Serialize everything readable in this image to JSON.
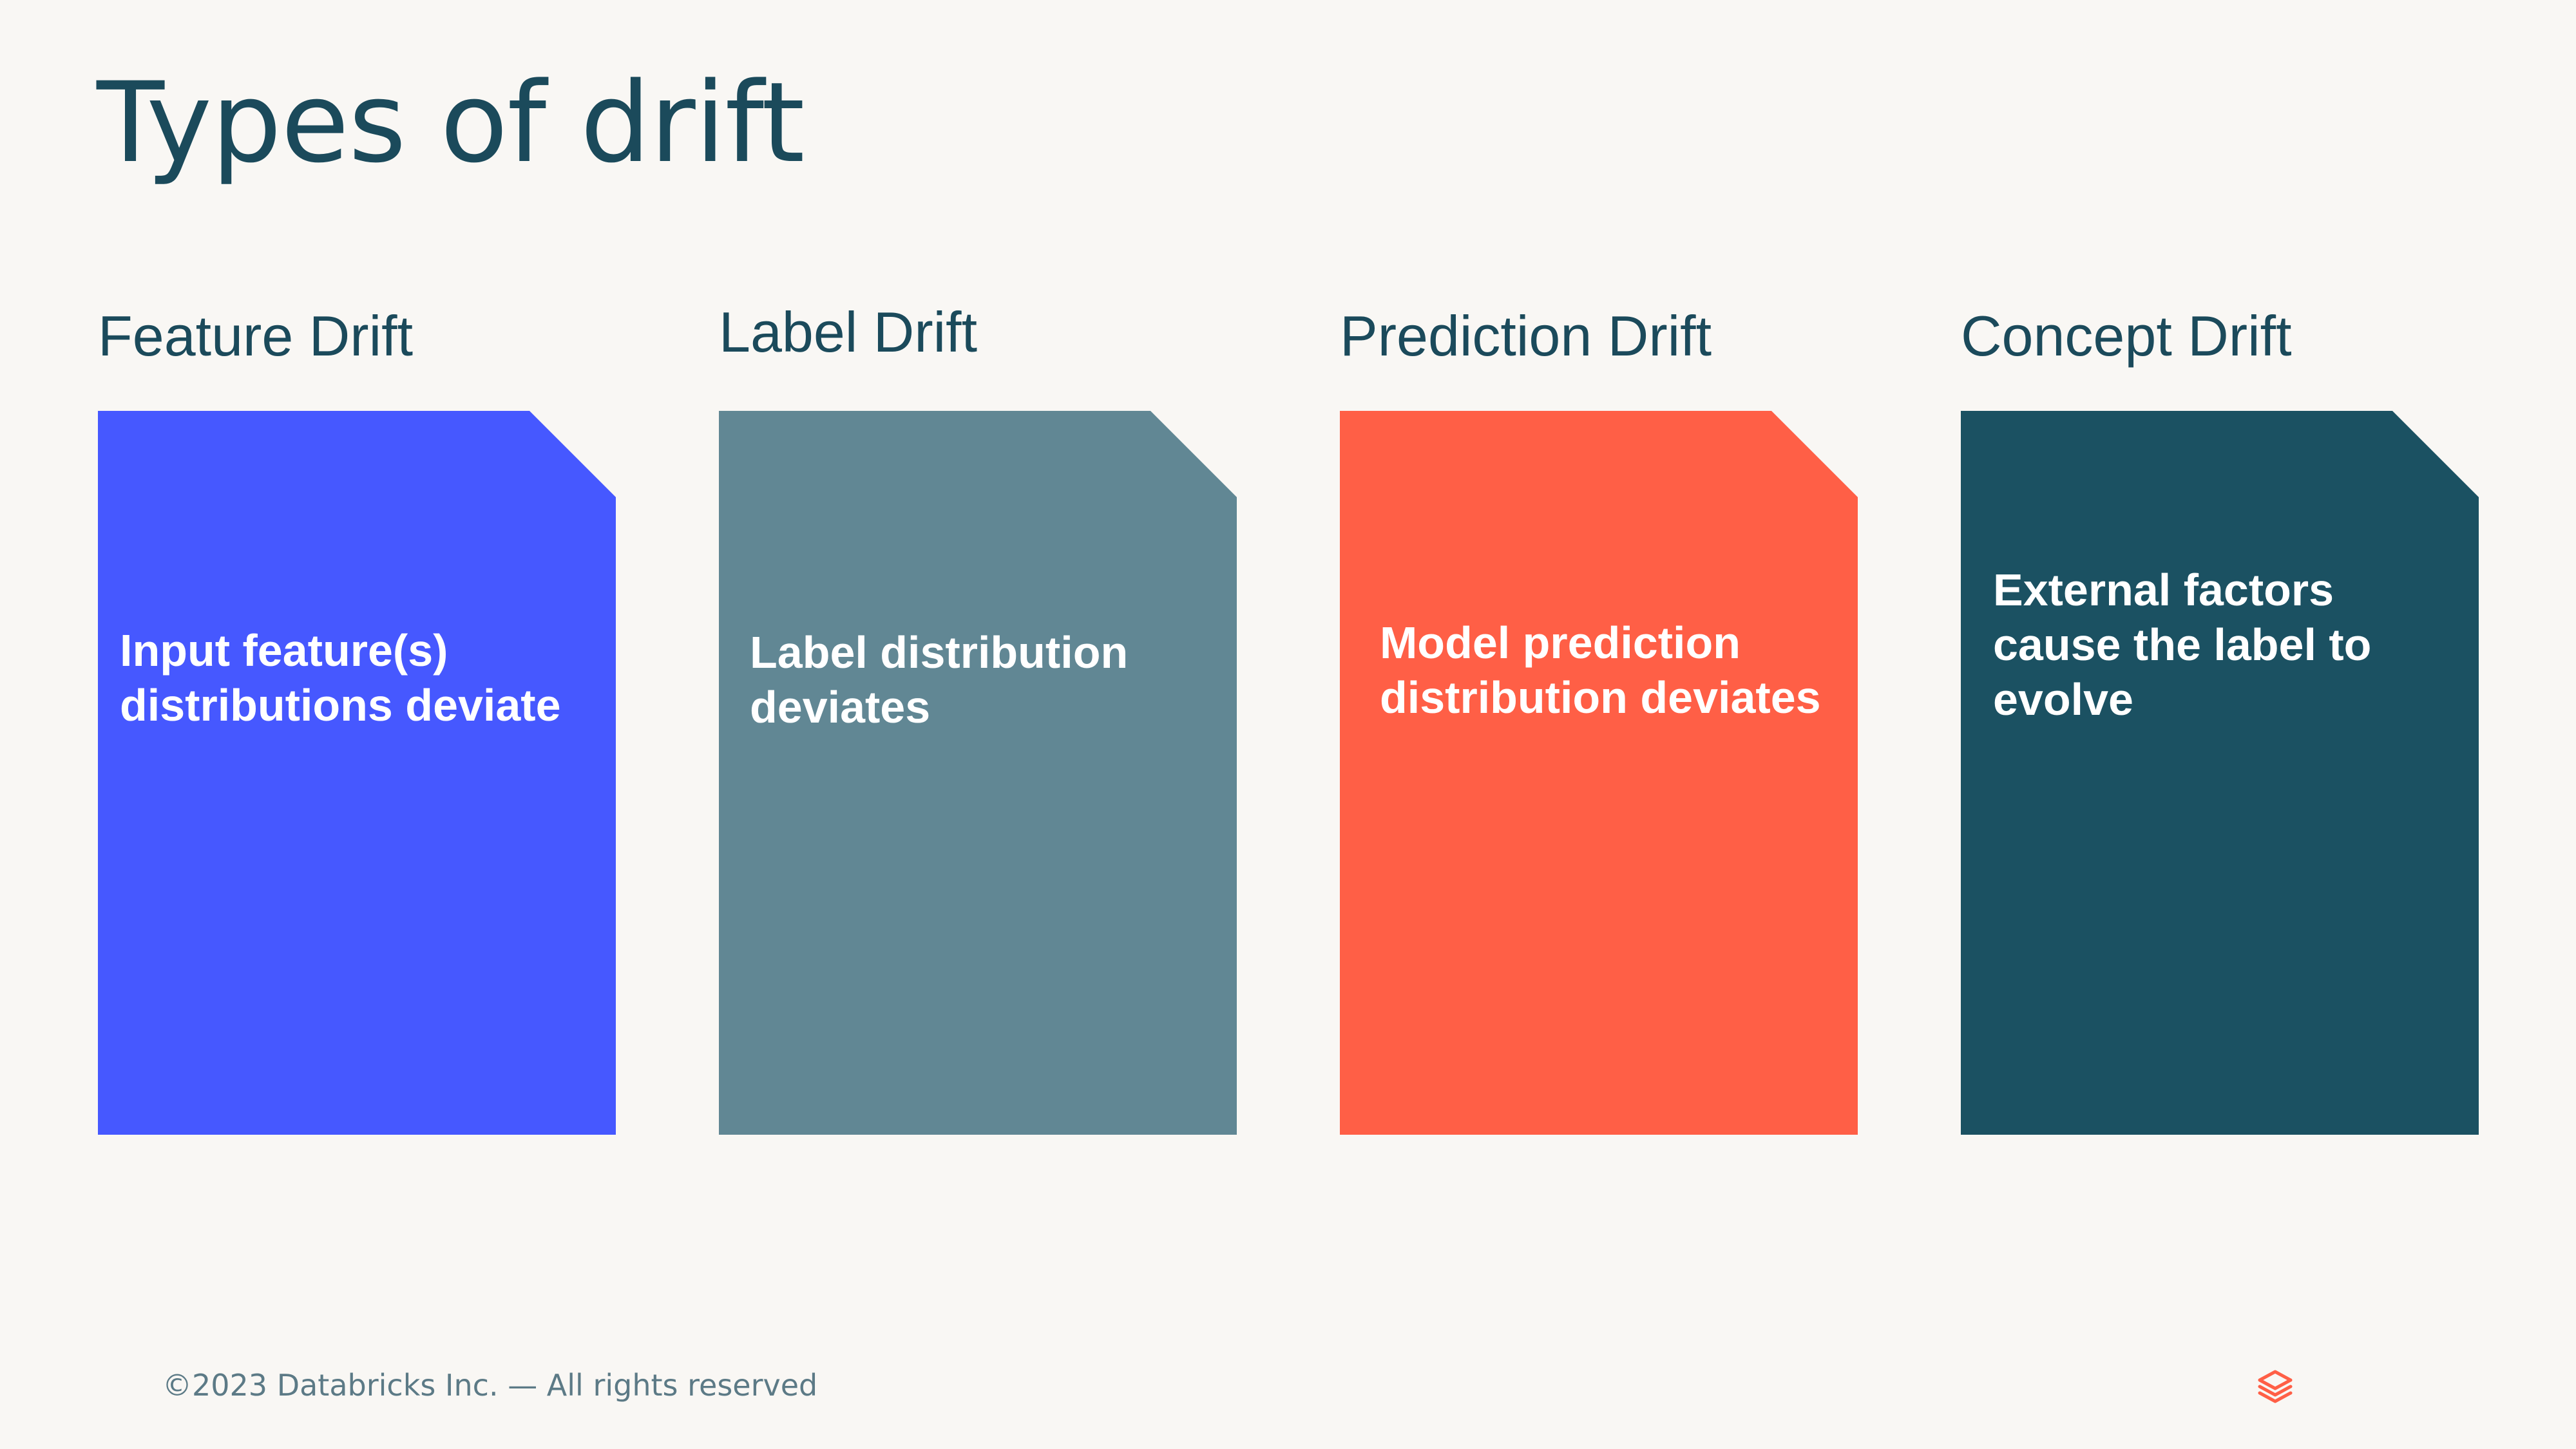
{
  "slide": {
    "title": "Types of drift"
  },
  "columns": [
    {
      "heading": "Feature Drift",
      "description": "Input feature(s) distributions deviate",
      "color": "#4658FF"
    },
    {
      "heading": "Label Drift",
      "description": "Label distribution deviates",
      "color": "#618794"
    },
    {
      "heading": "Prediction Drift",
      "description": "Model prediction distribution deviates",
      "color": "#FF5F46"
    },
    {
      "heading": "Concept Drift",
      "description": "External factors cause the label to evolve",
      "color": "#1B5162"
    }
  ],
  "footer": {
    "copyright": "©2023 Databricks Inc. — All rights reserved",
    "logo_icon": "databricks-logo-icon",
    "logo_color": "#FF5F46"
  }
}
